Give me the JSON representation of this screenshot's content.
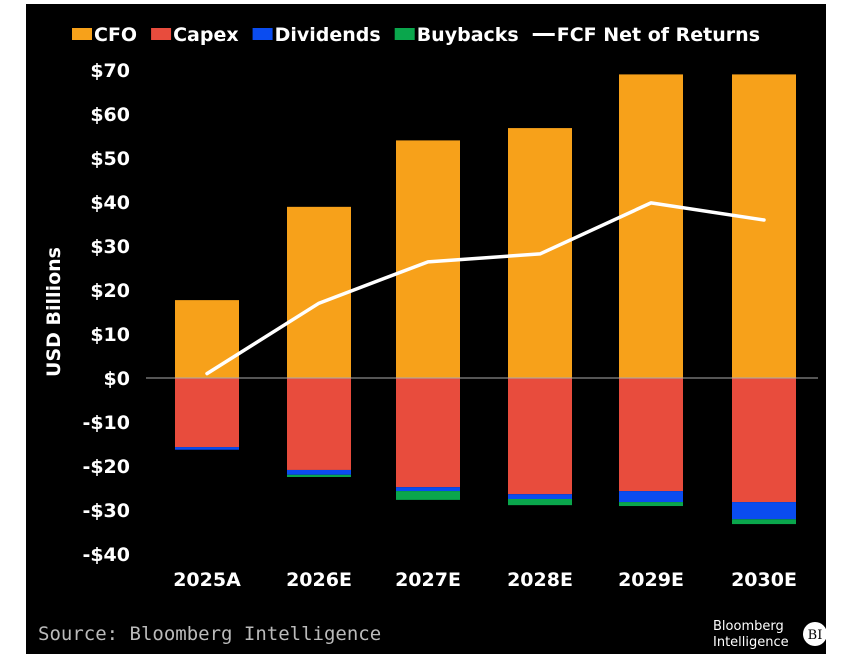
{
  "chart_data": {
    "type": "bar",
    "stacked": true,
    "categories": [
      "2025A",
      "2026E",
      "2027E",
      "2028E",
      "2029E",
      "2030E"
    ],
    "series": [
      {
        "name": "CFO",
        "color": "#f7a11a",
        "values": [
          17.7,
          38.9,
          54.0,
          56.8,
          69.0,
          69.0
        ]
      },
      {
        "name": "Capex",
        "color": "#e84c3d",
        "values": [
          -15.7,
          -20.9,
          -24.8,
          -26.4,
          -25.7,
          -28.2
        ]
      },
      {
        "name": "Dividends",
        "color": "#0a4cf0",
        "values": [
          -0.6,
          -1.1,
          -0.9,
          -1.1,
          -2.5,
          -3.9
        ]
      },
      {
        "name": "Buybacks",
        "color": "#0aa64c",
        "values": [
          0,
          -0.5,
          -2.0,
          -1.4,
          -0.9,
          -1.1
        ]
      },
      {
        "name": "FCF Net of Returns",
        "type": "line",
        "color": "#ffffff",
        "values": [
          1.0,
          17.0,
          26.4,
          28.2,
          39.8,
          35.9
        ]
      }
    ],
    "ylabel": "USD Billions",
    "ylim": [
      -40,
      70
    ],
    "yticks": [
      70,
      60,
      50,
      40,
      30,
      20,
      10,
      0,
      -10,
      -20,
      -30,
      -40
    ],
    "ytick_labels": [
      "$70",
      "$60",
      "$50",
      "$40",
      "$30",
      "$20",
      "$10",
      "$0",
      "-$10",
      "-$20",
      "-$30",
      "-$40"
    ],
    "legend": "top",
    "grid": false,
    "source": "Source: Bloomberg Intelligence"
  },
  "logo": {
    "line1": "Bloomberg",
    "line2": "Intelligence",
    "badge": "BI"
  }
}
